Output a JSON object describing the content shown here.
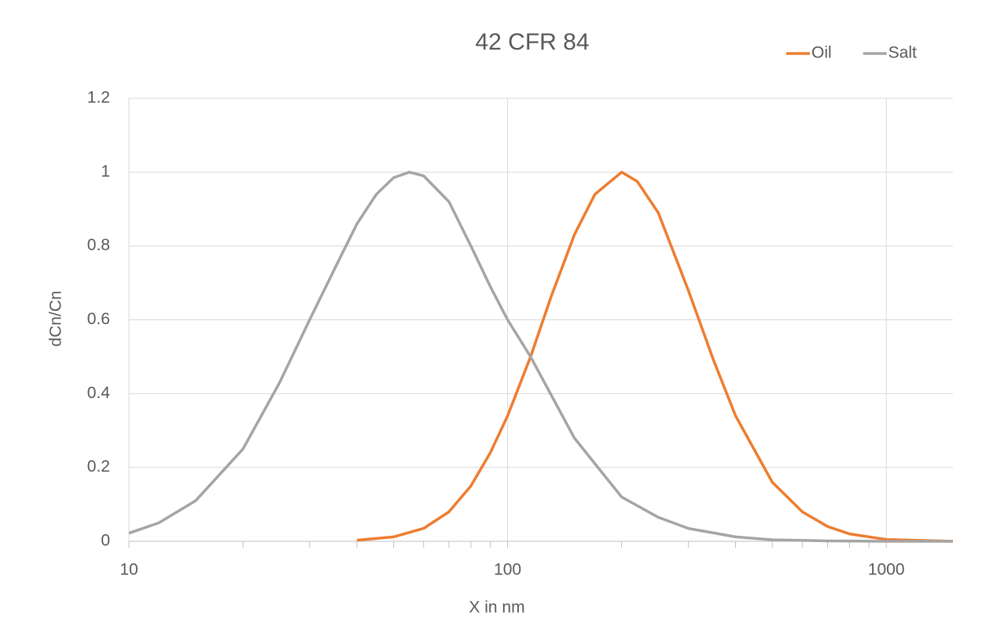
{
  "chart_data": {
    "type": "line",
    "title": "42 CFR 84",
    "x_label": "X in nm",
    "y_label": "dCn/Cn",
    "xscale": "log",
    "xlim": [
      10,
      1500
    ],
    "xticks": [
      10,
      100,
      1000
    ],
    "ylim": [
      0,
      1.2
    ],
    "yticks": [
      0,
      0.2,
      0.4,
      0.6,
      0.8,
      1,
      1.2
    ],
    "grid": true,
    "legend": "top-right",
    "series": [
      {
        "name": "Oil",
        "color": "#ed7d31",
        "x": [
          40,
          50,
          60,
          70,
          80,
          90,
          100,
          115,
          130,
          150,
          170,
          200,
          220,
          250,
          300,
          350,
          400,
          500,
          600,
          700,
          800,
          1000,
          1500
        ],
        "values": [
          0.003,
          0.012,
          0.035,
          0.08,
          0.15,
          0.24,
          0.34,
          0.5,
          0.66,
          0.83,
          0.94,
          1.0,
          0.975,
          0.89,
          0.68,
          0.49,
          0.34,
          0.16,
          0.08,
          0.04,
          0.02,
          0.005,
          0
        ]
      },
      {
        "name": "Salt",
        "color": "#a5a5a5",
        "x": [
          10,
          12,
          15,
          20,
          25,
          30,
          35,
          40,
          45,
          50,
          55,
          60,
          70,
          80,
          90,
          100,
          115,
          150,
          200,
          250,
          300,
          400,
          500,
          700,
          1000,
          1500
        ],
        "values": [
          0.022,
          0.05,
          0.11,
          0.25,
          0.43,
          0.6,
          0.74,
          0.86,
          0.94,
          0.985,
          1.0,
          0.99,
          0.92,
          0.8,
          0.69,
          0.6,
          0.5,
          0.28,
          0.12,
          0.065,
          0.035,
          0.012,
          0.004,
          0.001,
          0,
          0
        ]
      }
    ]
  }
}
